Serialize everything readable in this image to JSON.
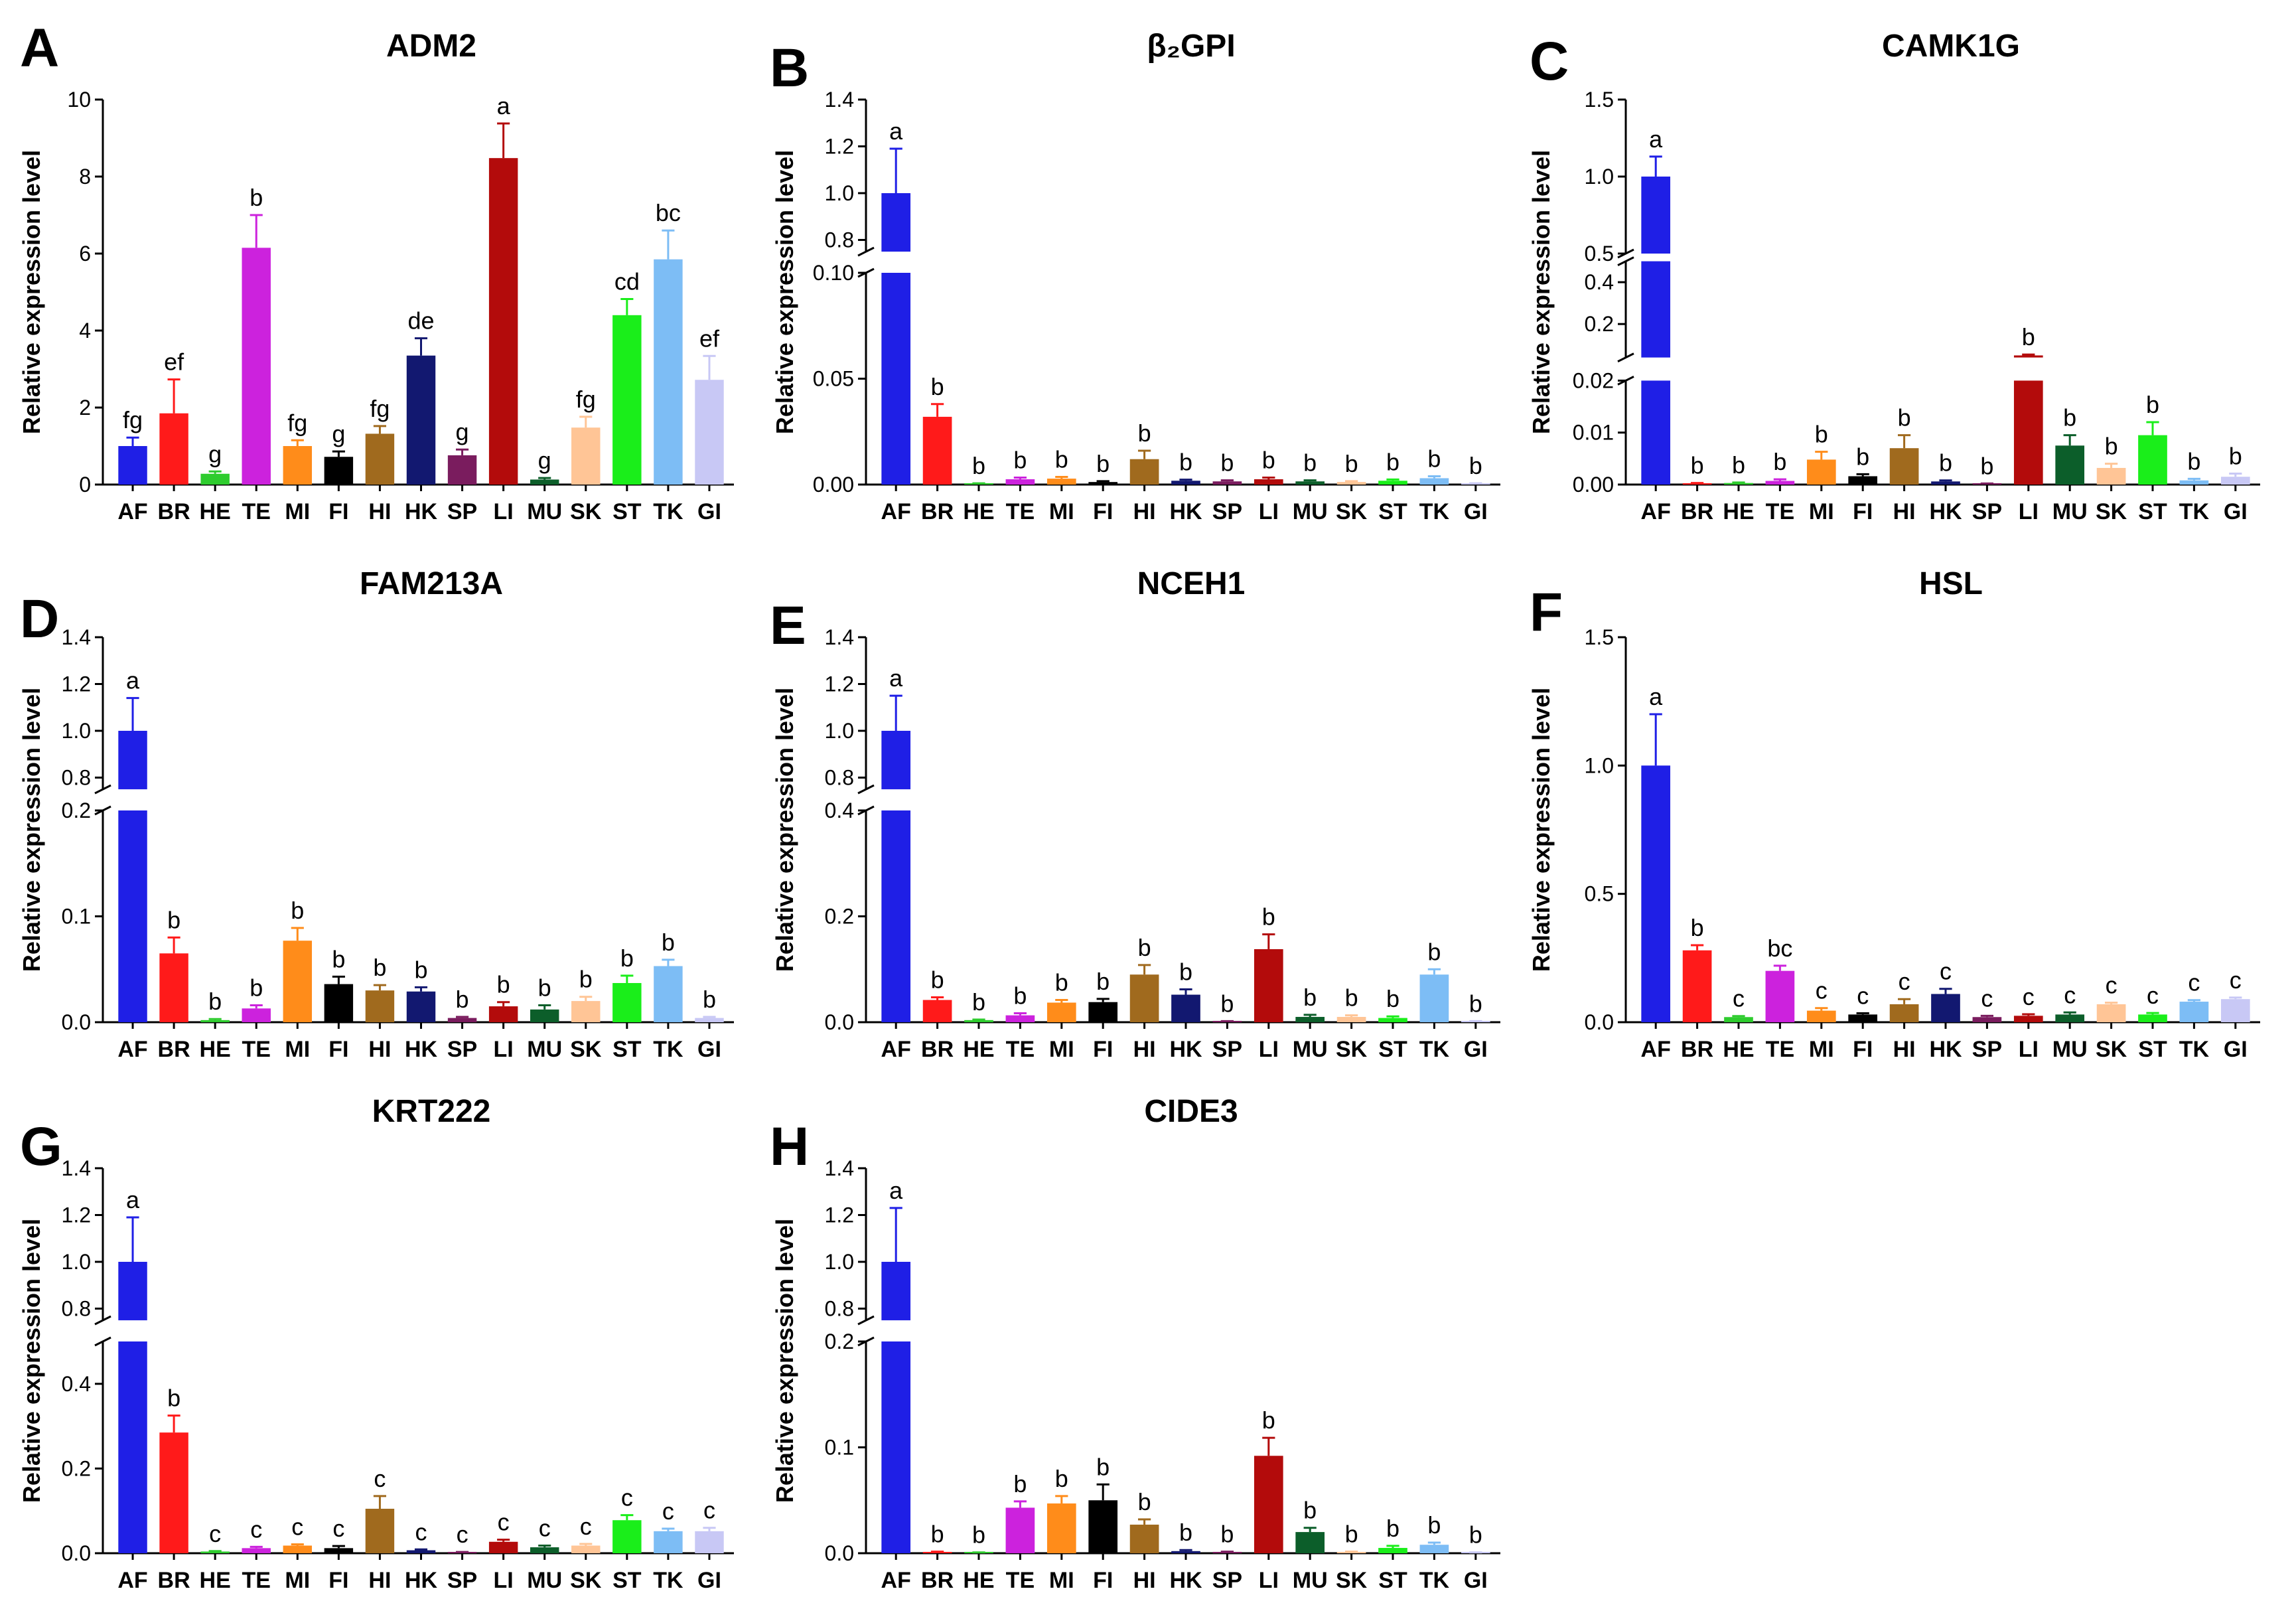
{
  "figure": {
    "ylabel": "Relative expression level"
  },
  "colors": [
    "#1f1fe6",
    "#ff1a1a",
    "#2ecc2e",
    "#cc22dd",
    "#ff8c1a",
    "#000000",
    "#a06a1e",
    "#121870",
    "#7a1c5e",
    "#b30b0b",
    "#0c5e2a",
    "#ffc596",
    "#1aee1a",
    "#7dbdf5",
    "#c8c8f5"
  ],
  "chart_data": [
    {
      "panel": "A",
      "type": "bar",
      "title": "ADM2",
      "categories": [
        "AF",
        "BR",
        "HE",
        "TE",
        "MI",
        "FI",
        "HI",
        "HK",
        "SP",
        "LI",
        "MU",
        "SK",
        "ST",
        "TK",
        "GI"
      ],
      "values": [
        1.0,
        1.85,
        0.28,
        6.15,
        1.0,
        0.72,
        1.32,
        3.35,
        0.76,
        8.48,
        0.13,
        1.48,
        4.4,
        5.85,
        2.72
      ],
      "errors": [
        0.22,
        0.88,
        0.06,
        0.85,
        0.15,
        0.14,
        0.2,
        0.45,
        0.15,
        0.9,
        0.04,
        0.28,
        0.42,
        0.75,
        0.62
      ],
      "labels": [
        "fg",
        "ef",
        "g",
        "b",
        "fg",
        "g",
        "fg",
        "de",
        "g",
        "a",
        "g",
        "fg",
        "cd",
        "bc",
        "ef"
      ],
      "ylim": [
        0,
        10
      ],
      "lower_ticks": [
        "0",
        "2",
        "4",
        "6",
        "8",
        "10"
      ]
    },
    {
      "panel": "B",
      "type": "bar",
      "title": "β₂GPI",
      "categories": [
        "AF",
        "BR",
        "HE",
        "TE",
        "MI",
        "FI",
        "HI",
        "HK",
        "SP",
        "LI",
        "MU",
        "SK",
        "ST",
        "TK",
        "GI"
      ],
      "values": [
        1.0,
        0.032,
        0.0004,
        0.0025,
        0.0028,
        0.0012,
        0.012,
        0.0018,
        0.0015,
        0.0025,
        0.0015,
        0.0012,
        0.0018,
        0.003,
        0.0004
      ],
      "errors": [
        0.19,
        0.006,
        0.0002,
        0.0008,
        0.0008,
        0.0004,
        0.004,
        0.0005,
        0.0005,
        0.0008,
        0.0005,
        0.0004,
        0.0006,
        0.0009,
        0.0002
      ],
      "labels": [
        "a",
        "b",
        "b",
        "b",
        "b",
        "b",
        "b",
        "b",
        "b",
        "b",
        "b",
        "b",
        "b",
        "b",
        "b"
      ],
      "ylim": [
        0,
        1.4
      ],
      "break": [
        0.1,
        0.75
      ],
      "lower_ticks": [
        "0.00",
        "0.05",
        "0.10"
      ],
      "upper_ticks": [
        "0.8",
        "1.0",
        "1.2",
        "1.4"
      ]
    },
    {
      "panel": "C",
      "type": "bar",
      "title": "CAMK1G",
      "categories": [
        "AF",
        "BR",
        "HE",
        "TE",
        "MI",
        "FI",
        "HI",
        "HK",
        "SP",
        "LI",
        "MU",
        "SK",
        "ST",
        "TK",
        "GI"
      ],
      "values": [
        1.0,
        0.0002,
        0.0003,
        0.0007,
        0.0048,
        0.0016,
        0.007,
        0.0006,
        0.0001,
        0.05,
        0.0075,
        0.0032,
        0.0095,
        0.0008,
        0.0015
      ],
      "errors": [
        0.13,
        0.0001,
        0.0001,
        0.0003,
        0.0015,
        0.0004,
        0.0025,
        0.0002,
        0.0001,
        0.004,
        0.002,
        0.0008,
        0.0025,
        0.0003,
        0.0006
      ],
      "labels": [
        "a",
        "b",
        "b",
        "b",
        "b",
        "b",
        "b",
        "b",
        "b",
        "b",
        "b",
        "b",
        "b",
        "b",
        "b"
      ],
      "ylim": [
        0,
        1.5
      ],
      "segments": [
        [
          0,
          0.02
        ],
        [
          0.04,
          0.5
        ],
        [
          0.5,
          1.5
        ]
      ],
      "lower_ticks": [
        "0.00",
        "0.01",
        "0.02"
      ],
      "middle_ticks": [
        "0.2",
        "0.4"
      ],
      "upper_ticks": [
        "0.5",
        "1.0",
        "1.5"
      ]
    },
    {
      "panel": "D",
      "type": "bar",
      "title": "FAM213A",
      "categories": [
        "AF",
        "BR",
        "HE",
        "TE",
        "MI",
        "FI",
        "HI",
        "HK",
        "SP",
        "LI",
        "MU",
        "SK",
        "ST",
        "TK",
        "GI"
      ],
      "values": [
        1.0,
        0.065,
        0.002,
        0.013,
        0.077,
        0.036,
        0.03,
        0.029,
        0.004,
        0.015,
        0.012,
        0.02,
        0.037,
        0.053,
        0.004
      ],
      "errors": [
        0.14,
        0.015,
        0.001,
        0.003,
        0.012,
        0.007,
        0.005,
        0.004,
        0.001,
        0.004,
        0.004,
        0.004,
        0.007,
        0.006,
        0.001
      ],
      "labels": [
        "a",
        "b",
        "b",
        "b",
        "b",
        "b",
        "b",
        "b",
        "b",
        "b",
        "b",
        "b",
        "b",
        "b",
        "b"
      ],
      "ylim": [
        0,
        1.4
      ],
      "break": [
        0.2,
        0.75
      ],
      "lower_ticks": [
        "0.0",
        "0.1",
        "0.2"
      ],
      "upper_ticks": [
        "0.8",
        "1.0",
        "1.2",
        "1.4"
      ]
    },
    {
      "panel": "E",
      "type": "bar",
      "title": "NCEH1",
      "categories": [
        "AF",
        "BR",
        "HE",
        "TE",
        "MI",
        "FI",
        "HI",
        "HK",
        "SP",
        "LI",
        "MU",
        "SK",
        "ST",
        "TK",
        "GI"
      ],
      "values": [
        1.0,
        0.042,
        0.004,
        0.013,
        0.037,
        0.038,
        0.09,
        0.052,
        0.001,
        0.138,
        0.01,
        0.01,
        0.008,
        0.09,
        0.001
      ],
      "errors": [
        0.15,
        0.005,
        0.001,
        0.004,
        0.005,
        0.006,
        0.018,
        0.01,
        0.001,
        0.028,
        0.004,
        0.003,
        0.003,
        0.01,
        0.001
      ],
      "labels": [
        "a",
        "b",
        "b",
        "b",
        "b",
        "b",
        "b",
        "b",
        "b",
        "b",
        "b",
        "b",
        "b",
        "b",
        "b"
      ],
      "ylim": [
        0,
        1.4
      ],
      "break": [
        0.4,
        0.75
      ],
      "lower_ticks": [
        "0.0",
        "0.2",
        "0.4"
      ],
      "upper_ticks": [
        "0.8",
        "1.0",
        "1.2",
        "1.4"
      ]
    },
    {
      "panel": "F",
      "type": "bar",
      "title": "HSL",
      "categories": [
        "AF",
        "BR",
        "HE",
        "TE",
        "MI",
        "FI",
        "HI",
        "HK",
        "SP",
        "LI",
        "MU",
        "SK",
        "ST",
        "TK",
        "GI"
      ],
      "values": [
        1.0,
        0.28,
        0.02,
        0.2,
        0.045,
        0.03,
        0.07,
        0.11,
        0.02,
        0.025,
        0.03,
        0.07,
        0.03,
        0.08,
        0.09
      ],
      "errors": [
        0.2,
        0.02,
        0.004,
        0.02,
        0.01,
        0.005,
        0.02,
        0.02,
        0.005,
        0.006,
        0.008,
        0.006,
        0.006,
        0.006,
        0.006
      ],
      "labels": [
        "a",
        "b",
        "c",
        "bc",
        "c",
        "c",
        "c",
        "c",
        "c",
        "c",
        "c",
        "c",
        "c",
        "c",
        "c"
      ],
      "ylim": [
        0,
        1.5
      ],
      "lower_ticks": [
        "0.0",
        "0.5",
        "1.0",
        "1.5"
      ]
    },
    {
      "panel": "G",
      "type": "bar",
      "title": "KRT222",
      "categories": [
        "AF",
        "BR",
        "HE",
        "TE",
        "MI",
        "FI",
        "HI",
        "HK",
        "SP",
        "LI",
        "MU",
        "SK",
        "ST",
        "TK",
        "GI"
      ],
      "values": [
        1.0,
        0.285,
        0.004,
        0.012,
        0.018,
        0.012,
        0.105,
        0.007,
        0.002,
        0.027,
        0.014,
        0.018,
        0.078,
        0.052,
        0.052
      ],
      "errors": [
        0.19,
        0.04,
        0.001,
        0.003,
        0.003,
        0.005,
        0.03,
        0.002,
        0.001,
        0.005,
        0.004,
        0.004,
        0.012,
        0.006,
        0.008
      ],
      "labels": [
        "a",
        "b",
        "c",
        "c",
        "c",
        "c",
        "c",
        "c",
        "c",
        "c",
        "c",
        "c",
        "c",
        "c",
        "c"
      ],
      "ylim": [
        0,
        1.4
      ],
      "break": [
        0.5,
        0.75
      ],
      "lower_ticks": [
        "0.0",
        "0.2",
        "0.4"
      ],
      "upper_ticks": [
        "0.8",
        "1.0",
        "1.2",
        "1.4"
      ]
    },
    {
      "panel": "H",
      "type": "bar",
      "title": "CIDE3",
      "categories": [
        "AF",
        "BR",
        "HE",
        "TE",
        "MI",
        "FI",
        "HI",
        "HK",
        "SP",
        "LI",
        "MU",
        "SK",
        "ST",
        "TK",
        "GI"
      ],
      "values": [
        1.0,
        0.001,
        0.0005,
        0.043,
        0.047,
        0.05,
        0.027,
        0.002,
        0.001,
        0.092,
        0.02,
        0.001,
        0.005,
        0.008,
        0.0005
      ],
      "errors": [
        0.23,
        0.0005,
        0.0003,
        0.006,
        0.007,
        0.015,
        0.005,
        0.001,
        0.0005,
        0.017,
        0.004,
        0.0005,
        0.002,
        0.002,
        0.0003
      ],
      "labels": [
        "a",
        "b",
        "b",
        "b",
        "b",
        "b",
        "b",
        "b",
        "b",
        "b",
        "b",
        "b",
        "b",
        "b",
        "b"
      ],
      "ylim": [
        0,
        1.4
      ],
      "break": [
        0.2,
        0.75
      ],
      "lower_ticks": [
        "0.0",
        "0.1",
        "0.2"
      ],
      "upper_ticks": [
        "0.8",
        "1.0",
        "1.2",
        "1.4"
      ]
    }
  ]
}
